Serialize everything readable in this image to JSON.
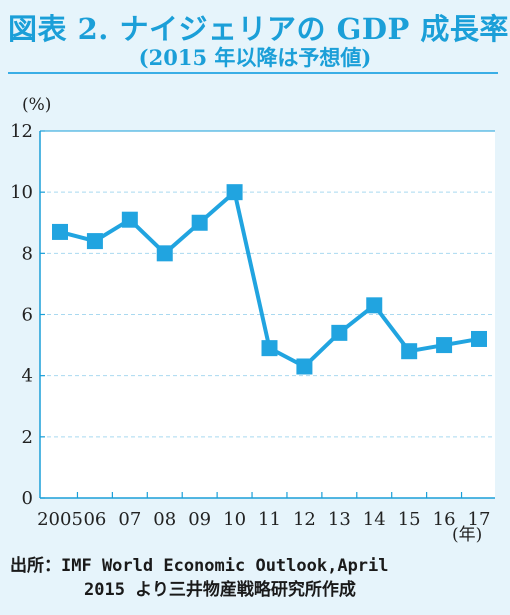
{
  "header": {
    "title": "図表 2. ナイジェリアの GDP 成長率",
    "subtitle": "(2015 年以降は予想値)"
  },
  "footer": {
    "source_line1": "出所：IMF World Economic Outlook,April",
    "source_line2": "2015 より三井物産戦略研究所作成"
  },
  "chart_data": {
    "type": "line",
    "y_unit": "(%)",
    "x_unit": "(年)",
    "ylim": [
      0,
      12
    ],
    "y_ticks": [
      0,
      2,
      4,
      6,
      8,
      10,
      12
    ],
    "grid": true,
    "categories": [
      "2005",
      "06",
      "07",
      "08",
      "09",
      "10",
      "11",
      "12",
      "13",
      "14",
      "15",
      "16",
      "17"
    ],
    "series": [
      {
        "values": [
          8.7,
          8.4,
          9.1,
          8.0,
          9.0,
          10.0,
          4.9,
          4.3,
          5.4,
          6.3,
          4.8,
          5.0,
          5.2
        ]
      }
    ],
    "colors": {
      "line": "#21a4e0",
      "marker": "#21a4e0",
      "grid": "#a9d9f0",
      "axis": "#1b9fd8"
    }
  }
}
